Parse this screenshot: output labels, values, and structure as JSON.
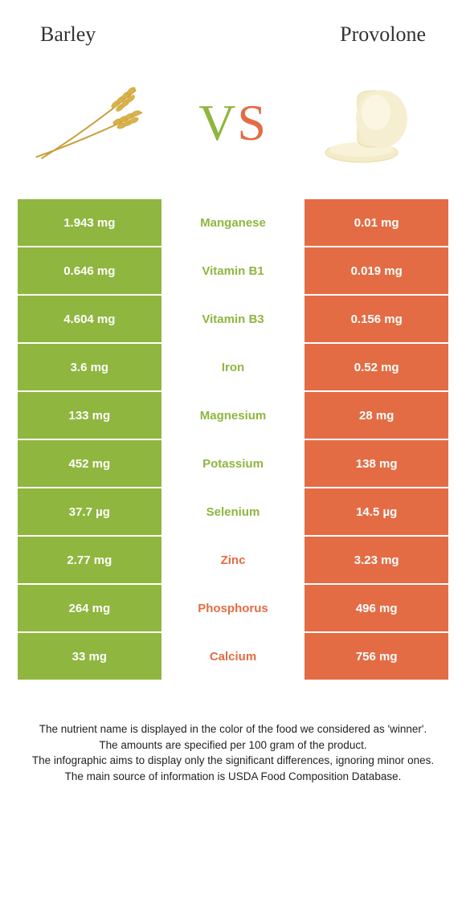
{
  "header": {
    "left_title": "Barley",
    "right_title": "Provolone",
    "vs_v": "V",
    "vs_s": "S"
  },
  "colors": {
    "left": "#8fb63f",
    "right": "#e36c44",
    "background": "#ffffff",
    "text_dark": "#333333",
    "barley_stem": "#c9a03a",
    "barley_grain": "#d9b24a",
    "provolone_body": "#f4ecc8",
    "provolone_shadow": "#e5dba8"
  },
  "rows": [
    {
      "left": "1.943 mg",
      "label": "Manganese",
      "right": "0.01 mg",
      "winner": "left"
    },
    {
      "left": "0.646 mg",
      "label": "Vitamin B1",
      "right": "0.019 mg",
      "winner": "left"
    },
    {
      "left": "4.604 mg",
      "label": "Vitamin B3",
      "right": "0.156 mg",
      "winner": "left"
    },
    {
      "left": "3.6 mg",
      "label": "Iron",
      "right": "0.52 mg",
      "winner": "left"
    },
    {
      "left": "133 mg",
      "label": "Magnesium",
      "right": "28 mg",
      "winner": "left"
    },
    {
      "left": "452 mg",
      "label": "Potassium",
      "right": "138 mg",
      "winner": "left"
    },
    {
      "left": "37.7 µg",
      "label": "Selenium",
      "right": "14.5 µg",
      "winner": "left"
    },
    {
      "left": "2.77 mg",
      "label": "Zinc",
      "right": "3.23 mg",
      "winner": "right"
    },
    {
      "left": "264 mg",
      "label": "Phosphorus",
      "right": "496 mg",
      "winner": "right"
    },
    {
      "left": "33 mg",
      "label": "Calcium",
      "right": "756 mg",
      "winner": "right"
    }
  ],
  "footer": {
    "line1": "The nutrient name is displayed in the color of the food we considered as 'winner'.",
    "line2": "The amounts are specified per 100 gram of the product.",
    "line3": "The infographic aims to display only the significant differences, ignoring minor ones.",
    "line4": "The main source of information is USDA Food Composition Database."
  }
}
